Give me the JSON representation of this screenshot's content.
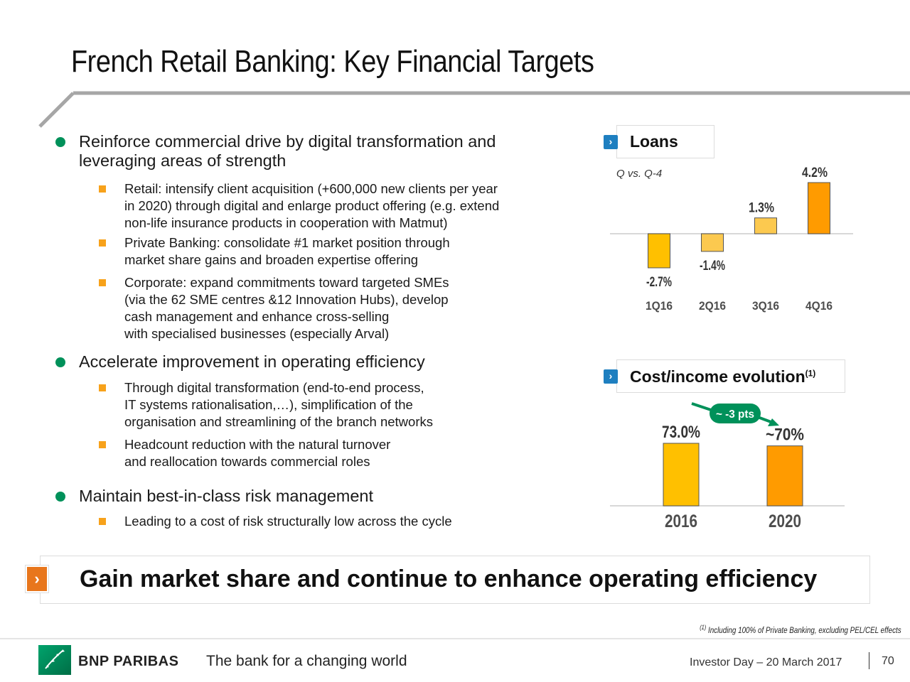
{
  "title": "French Retail Banking: Key Financial Targets",
  "bullets": [
    {
      "text_lines": [
        "Reinforce commercial drive by digital transformation and",
        "leveraging areas of strength"
      ],
      "sub": [
        {
          "lines": [
            "Retail: intensify client acquisition (+600,000 new clients per year",
            "in 2020) through digital and enlarge product offering (e.g. extend",
            "non-life insurance products in cooperation with Matmut)"
          ]
        },
        {
          "lines": [
            "Private Banking: consolidate #1 market position through",
            "market share gains and broaden expertise offering"
          ]
        },
        {
          "lines": [
            "Corporate: expand commitments toward targeted SMEs",
            "(via the 62 SME centres &12 Innovation Hubs), develop",
            "cash management and enhance cross-selling",
            "with specialised businesses (especially Arval)"
          ]
        }
      ]
    },
    {
      "text_lines": [
        "Accelerate improvement in operating efficiency"
      ],
      "sub": [
        {
          "lines": [
            "Through digital transformation (end-to-end process,",
            "IT systems rationalisation,…), simplification of the",
            "organisation and streamlining of the branch networks"
          ]
        },
        {
          "lines": [
            "Headcount reduction with the natural turnover",
            "and reallocation towards commercial roles"
          ]
        }
      ]
    },
    {
      "text_lines": [
        "Maintain best-in-class risk management"
      ],
      "sub": [
        {
          "lines": [
            "Leading to a cost of risk structurally low across the cycle"
          ]
        }
      ]
    }
  ],
  "chart_data": [
    {
      "type": "bar",
      "title": "Loans",
      "subtitle": "Q vs. Q-4",
      "categories": [
        "1Q16",
        "2Q16",
        "3Q16",
        "4Q16"
      ],
      "values": [
        -2.7,
        -1.4,
        1.3,
        4.2
      ],
      "value_labels": [
        "-2.7%",
        "-1.4%",
        "1.3%",
        "4.2%"
      ],
      "colors": [
        "#ffc000",
        "#fcc94f",
        "#fcc94f",
        "#ff9b00"
      ],
      "ylim": [
        -3.2,
        4.2
      ],
      "grid": false
    },
    {
      "type": "bar",
      "title": "Cost/income evolution",
      "title_superscript": "(1)",
      "categories": [
        "2016",
        "2020"
      ],
      "values": [
        73.0,
        70
      ],
      "value_labels": [
        "73.0%",
        "~70%"
      ],
      "colors": [
        "#ffc000",
        "#ff9b00"
      ],
      "annotation": "~ -3 pts",
      "ylim": [
        0,
        100
      ],
      "grid": false
    }
  ],
  "banner": {
    "chevron": "›",
    "text": "Gain market share and continue to enhance operating efficiency"
  },
  "header_chevron": "›",
  "footnote": {
    "marker": "(1)",
    "text": "Including 100% of Private Banking, excluding PEL/CEL effects"
  },
  "footer": {
    "brand": "BNP PARIBAS",
    "tagline": "The bank for a changing world",
    "event": "Investor Day – 20 March 2017",
    "page": "70"
  },
  "colors": {
    "accent_green": "#00915a",
    "bullet_orange": "#f7a21b",
    "chevron_blue": "#1e7fc0",
    "banner_orange": "#e8761c"
  }
}
